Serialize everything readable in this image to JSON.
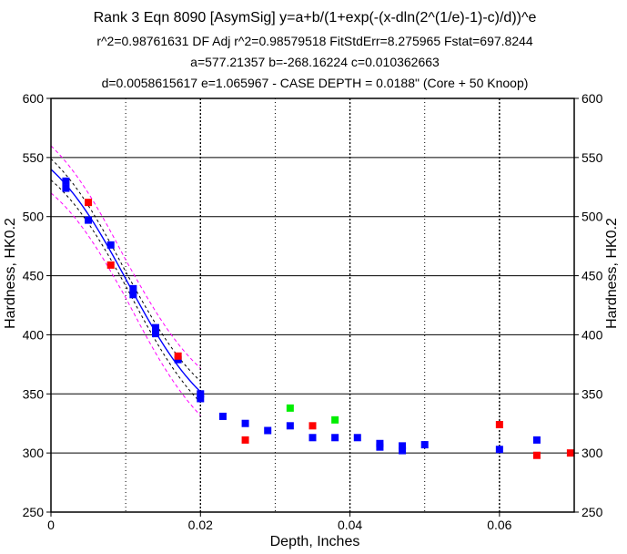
{
  "chart_data": {
    "type": "scatter",
    "title_lines": [
      "Rank 3  Eqn 8090  [AsymSig] y=a+b/(1+exp(-(x-dln(2^(1/e)-1)-c)/d))^e",
      "r^2=0.98761631  DF Adj r^2=0.98579518  FitStdErr=8.275965  Fstat=697.8244",
      "a=577.21357 b=-268.16224 c=0.010362663",
      "d=0.0058615617 e=1.065967 - CASE DEPTH = 0.0188\" (Core + 50 Knoop)"
    ],
    "xlabel": "Depth, Inches",
    "ylabel": "Hardness, HK0.2",
    "ylabel_right": "Hardness, HK0.2",
    "xlim": [
      0,
      0.07
    ],
    "ylim": [
      250,
      600
    ],
    "x_ticks": [
      0,
      0.02,
      0.04,
      0.06
    ],
    "x_tick_labels": [
      "0",
      "0.02",
      "0.04",
      "0.06"
    ],
    "y_ticks": [
      250,
      300,
      350,
      400,
      450,
      500,
      550,
      600
    ],
    "y_tick_labels": [
      "250",
      "300",
      "350",
      "400",
      "450",
      "500",
      "550",
      "600"
    ],
    "params": {
      "a": 577.21357,
      "b": -268.16224,
      "c": 0.010362663,
      "d": 0.0058615617,
      "e": 1.065967
    },
    "fit_x_range": [
      0,
      0.02
    ],
    "fit_color": "#0000ff",
    "conf_color": "#000000",
    "pred_color": "#ff00ff",
    "conf_band": 6,
    "pred_band": 16,
    "series": [
      {
        "name": "Blue points",
        "color": "#0000ff",
        "points": [
          [
            0.002,
            530
          ],
          [
            0.002,
            524
          ],
          [
            0.005,
            497
          ],
          [
            0.008,
            476
          ],
          [
            0.011,
            439
          ],
          [
            0.011,
            434
          ],
          [
            0.014,
            406
          ],
          [
            0.014,
            401
          ],
          [
            0.017,
            379
          ],
          [
            0.02,
            350
          ],
          [
            0.02,
            346
          ],
          [
            0.023,
            331
          ],
          [
            0.026,
            325
          ],
          [
            0.029,
            319
          ],
          [
            0.032,
            323
          ],
          [
            0.035,
            313
          ],
          [
            0.038,
            313
          ],
          [
            0.041,
            313
          ],
          [
            0.044,
            308
          ],
          [
            0.044,
            305
          ],
          [
            0.047,
            306
          ],
          [
            0.047,
            302
          ],
          [
            0.05,
            307
          ],
          [
            0.06,
            303
          ],
          [
            0.065,
            311
          ]
        ]
      },
      {
        "name": "Red points",
        "color": "#ff0000",
        "points": [
          [
            0.005,
            512
          ],
          [
            0.008,
            459
          ],
          [
            0.017,
            382
          ],
          [
            0.026,
            311
          ],
          [
            0.035,
            323
          ],
          [
            0.06,
            324
          ],
          [
            0.065,
            298
          ],
          [
            0.0695,
            300
          ]
        ]
      },
      {
        "name": "Green points",
        "color": "#00ee00",
        "points": [
          [
            0.032,
            338
          ],
          [
            0.038,
            328
          ]
        ]
      }
    ]
  }
}
